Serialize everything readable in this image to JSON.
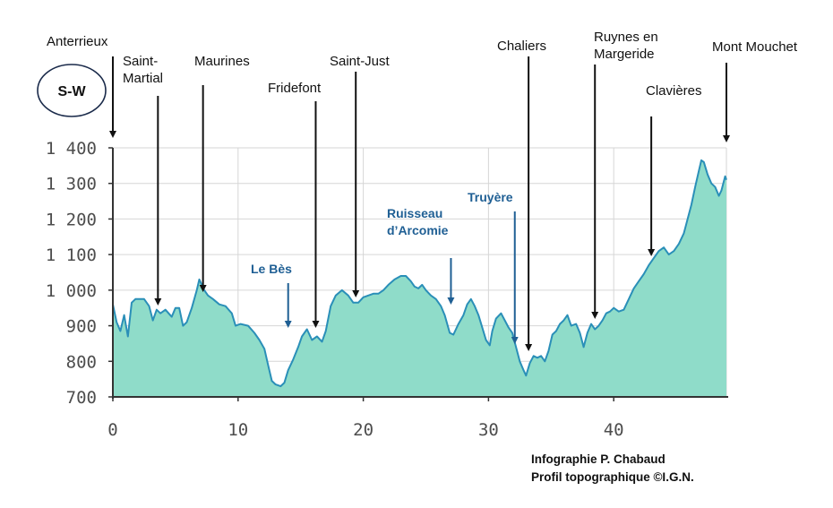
{
  "direction_badge": "S-W",
  "credits": [
    "Infographie P. Chabaud",
    "Profil topographique ©I.G.N."
  ],
  "colors": {
    "fill": "#8fdcc9",
    "line": "#2a8fb8",
    "grid": "#d6d6d6",
    "axis": "#333333",
    "river_label": "#1f5f94"
  },
  "chart_data": {
    "type": "area",
    "xlim": [
      0,
      49
    ],
    "ylim": [
      700,
      1400
    ],
    "x_ticks": [
      0,
      10,
      20,
      30,
      40
    ],
    "x_tick_labels": [
      "0",
      "10",
      "20",
      "30",
      "40"
    ],
    "y_ticks": [
      700,
      800,
      900,
      1000,
      1100,
      1200,
      1300,
      1400
    ],
    "y_tick_labels": [
      "700",
      "800",
      "900",
      "1 000",
      "1 100",
      "1 200",
      "1 300",
      "1 400"
    ],
    "grid": true,
    "points": [
      [
        0,
        960
      ],
      [
        0.3,
        910
      ],
      [
        0.6,
        885
      ],
      [
        0.9,
        930
      ],
      [
        1.2,
        870
      ],
      [
        1.5,
        965
      ],
      [
        1.8,
        975
      ],
      [
        2.5,
        975
      ],
      [
        2.9,
        955
      ],
      [
        3.2,
        915
      ],
      [
        3.5,
        945
      ],
      [
        3.8,
        935
      ],
      [
        4.2,
        945
      ],
      [
        4.7,
        925
      ],
      [
        5.0,
        950
      ],
      [
        5.3,
        950
      ],
      [
        5.6,
        900
      ],
      [
        5.9,
        910
      ],
      [
        6.3,
        950
      ],
      [
        6.7,
        1000
      ],
      [
        6.9,
        1030
      ],
      [
        7.3,
        1000
      ],
      [
        7.6,
        985
      ],
      [
        8.0,
        975
      ],
      [
        8.5,
        960
      ],
      [
        9.0,
        955
      ],
      [
        9.5,
        935
      ],
      [
        9.8,
        900
      ],
      [
        10.2,
        905
      ],
      [
        10.8,
        900
      ],
      [
        11.3,
        880
      ],
      [
        11.7,
        860
      ],
      [
        12.1,
        835
      ],
      [
        12.4,
        790
      ],
      [
        12.7,
        745
      ],
      [
        13.0,
        735
      ],
      [
        13.4,
        730
      ],
      [
        13.7,
        740
      ],
      [
        14.0,
        775
      ],
      [
        14.4,
        805
      ],
      [
        14.8,
        840
      ],
      [
        15.1,
        870
      ],
      [
        15.5,
        890
      ],
      [
        15.9,
        860
      ],
      [
        16.3,
        870
      ],
      [
        16.7,
        855
      ],
      [
        17.0,
        885
      ],
      [
        17.4,
        955
      ],
      [
        17.8,
        985
      ],
      [
        18.3,
        1000
      ],
      [
        18.8,
        985
      ],
      [
        19.2,
        965
      ],
      [
        19.6,
        965
      ],
      [
        20.0,
        980
      ],
      [
        20.4,
        985
      ],
      [
        20.8,
        990
      ],
      [
        21.2,
        990
      ],
      [
        21.6,
        1000
      ],
      [
        22.0,
        1015
      ],
      [
        22.5,
        1030
      ],
      [
        23.0,
        1040
      ],
      [
        23.4,
        1040
      ],
      [
        23.8,
        1025
      ],
      [
        24.1,
        1010
      ],
      [
        24.4,
        1005
      ],
      [
        24.7,
        1015
      ],
      [
        25.0,
        1000
      ],
      [
        25.4,
        985
      ],
      [
        25.8,
        975
      ],
      [
        26.2,
        955
      ],
      [
        26.5,
        930
      ],
      [
        26.9,
        880
      ],
      [
        27.2,
        875
      ],
      [
        27.6,
        905
      ],
      [
        28.0,
        930
      ],
      [
        28.3,
        960
      ],
      [
        28.6,
        975
      ],
      [
        28.9,
        955
      ],
      [
        29.2,
        930
      ],
      [
        29.5,
        895
      ],
      [
        29.8,
        860
      ],
      [
        30.1,
        845
      ],
      [
        30.3,
        885
      ],
      [
        30.6,
        920
      ],
      [
        31.0,
        935
      ],
      [
        31.3,
        915
      ],
      [
        31.6,
        895
      ],
      [
        31.9,
        880
      ],
      [
        32.2,
        840
      ],
      [
        32.5,
        800
      ],
      [
        32.8,
        775
      ],
      [
        33.0,
        760
      ],
      [
        33.3,
        795
      ],
      [
        33.6,
        815
      ],
      [
        33.9,
        810
      ],
      [
        34.2,
        815
      ],
      [
        34.5,
        800
      ],
      [
        34.8,
        830
      ],
      [
        35.1,
        875
      ],
      [
        35.4,
        885
      ],
      [
        35.7,
        905
      ],
      [
        36.0,
        915
      ],
      [
        36.3,
        930
      ],
      [
        36.6,
        900
      ],
      [
        37.0,
        905
      ],
      [
        37.3,
        880
      ],
      [
        37.6,
        840
      ],
      [
        37.9,
        880
      ],
      [
        38.2,
        905
      ],
      [
        38.5,
        890
      ],
      [
        38.8,
        900
      ],
      [
        39.1,
        915
      ],
      [
        39.4,
        935
      ],
      [
        39.7,
        940
      ],
      [
        40.0,
        950
      ],
      [
        40.4,
        940
      ],
      [
        40.8,
        945
      ],
      [
        41.2,
        975
      ],
      [
        41.6,
        1005
      ],
      [
        42.0,
        1025
      ],
      [
        42.4,
        1045
      ],
      [
        42.8,
        1070
      ],
      [
        43.2,
        1090
      ],
      [
        43.6,
        1110
      ],
      [
        44.0,
        1120
      ],
      [
        44.4,
        1100
      ],
      [
        44.8,
        1110
      ],
      [
        45.2,
        1130
      ],
      [
        45.6,
        1160
      ],
      [
        45.9,
        1200
      ],
      [
        46.2,
        1240
      ],
      [
        46.5,
        1290
      ],
      [
        46.8,
        1335
      ],
      [
        47.0,
        1365
      ],
      [
        47.2,
        1360
      ],
      [
        47.5,
        1325
      ],
      [
        47.8,
        1300
      ],
      [
        48.1,
        1290
      ],
      [
        48.4,
        1265
      ],
      [
        48.6,
        1280
      ],
      [
        48.9,
        1320
      ],
      [
        49.0,
        1310
      ]
    ],
    "place_labels": [
      {
        "lines": [
          "Anterrieux"
        ],
        "x": 0
      },
      {
        "lines": [
          "Saint-",
          "Martial"
        ],
        "x": 3.6
      },
      {
        "lines": [
          "Maurines"
        ],
        "x": 7.2
      },
      {
        "lines": [
          "Fridefont"
        ],
        "x": 16.2
      },
      {
        "lines": [
          "Saint-Just"
        ],
        "x": 19.4
      },
      {
        "lines": [
          "Chaliers"
        ],
        "x": 33.2
      },
      {
        "lines": [
          "Ruynes en",
          "Margeride"
        ],
        "x": 38.5
      },
      {
        "lines": [
          "Clavières"
        ],
        "x": 43.0
      },
      {
        "lines": [
          "Mont Mouchet"
        ],
        "x": 49.0
      }
    ],
    "river_labels": [
      {
        "lines": [
          "Le Bès"
        ],
        "x": 14.0
      },
      {
        "lines": [
          "Ruisseau",
          "d’Arcomie"
        ],
        "x": 27.0
      },
      {
        "lines": [
          "Truyère"
        ],
        "x": 32.1
      }
    ]
  }
}
